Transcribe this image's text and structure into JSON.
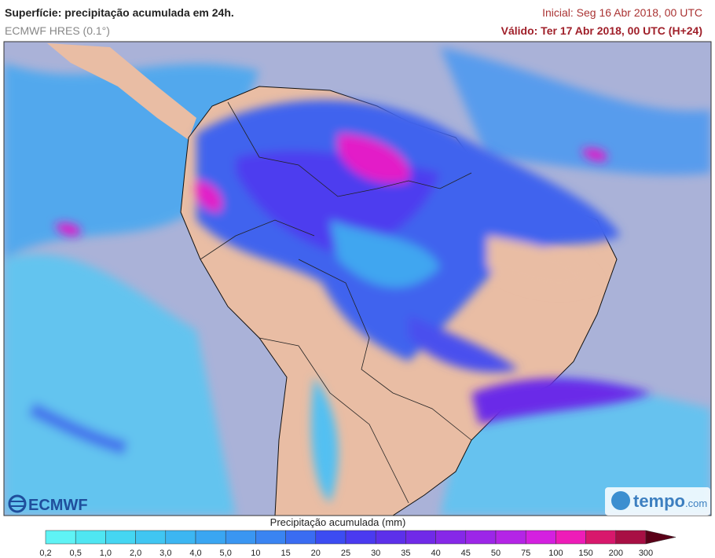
{
  "header": {
    "title": "Superfície: precipitação acumulada em 24h.",
    "subtitle": "ECMWF HRES (0.1°)",
    "initial": "Inicial: Seg 16 Abr 2018, 00 UTC",
    "valid": "Válido: Ter 17 Abr 2018, 00 UTC (H+24)"
  },
  "legend": {
    "title": "Precipitação acumulada (mm)",
    "labels": [
      "0,2",
      "0,5",
      "1,0",
      "2,0",
      "3,0",
      "4,0",
      "5,0",
      "10",
      "15",
      "20",
      "25",
      "30",
      "35",
      "40",
      "45",
      "50",
      "75",
      "100",
      "150",
      "200",
      "300"
    ],
    "colors": [
      "#5ff3f5",
      "#4fe6f2",
      "#45d6f2",
      "#40c6f2",
      "#3cb6f2",
      "#3aa6f2",
      "#3a96f2",
      "#3a84f2",
      "#3a6cf2",
      "#3c4cf2",
      "#4a3af0",
      "#5c30ea",
      "#702ae8",
      "#8628e8",
      "#9c26e8",
      "#b424e6",
      "#d420e0",
      "#ee1cb8",
      "#d8186c",
      "#a80f44"
    ],
    "arrow_color": "#5a0018"
  },
  "logos": {
    "ecmwf": "ECMWF",
    "tempo": "tempo",
    "tempo_suffix": ".com"
  }
}
